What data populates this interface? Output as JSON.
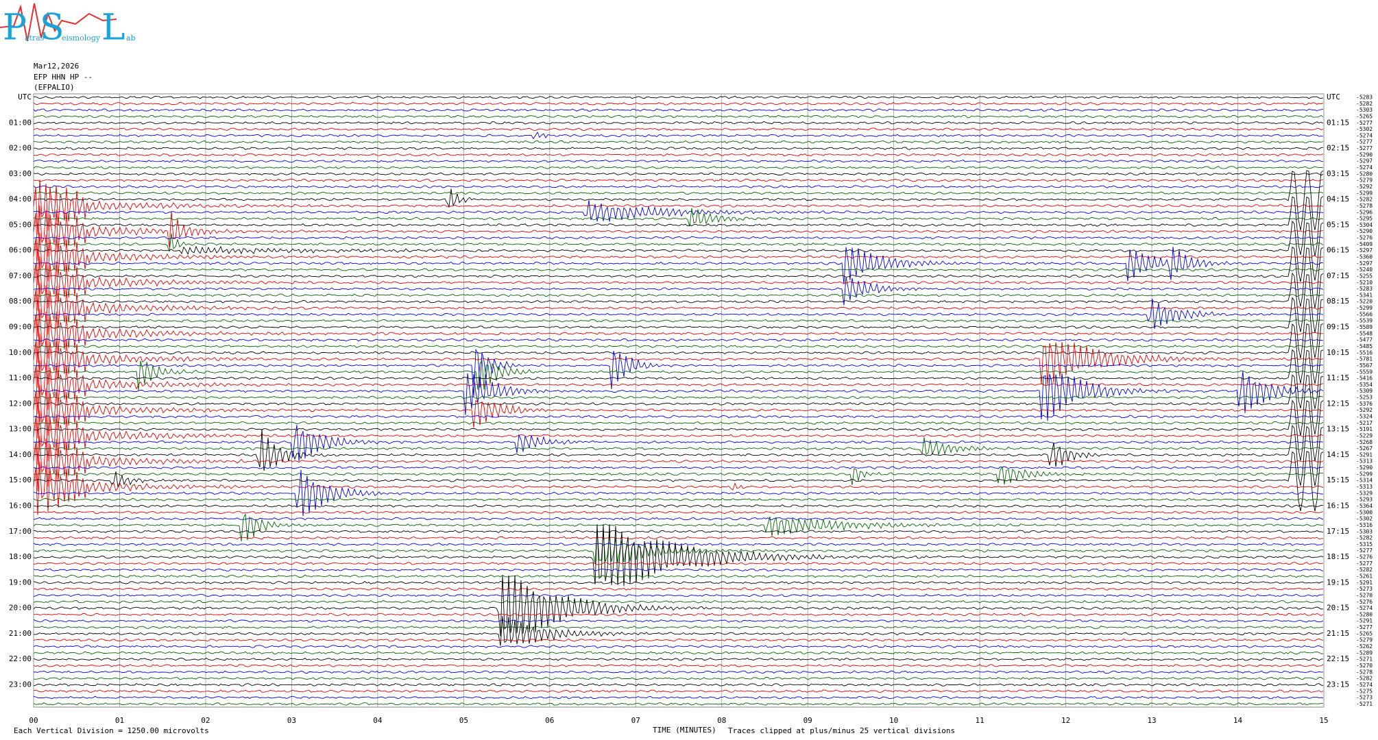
{
  "logo": {
    "p": "P",
    "p_rest": "atras",
    "s": "S",
    "s_rest": "eismology",
    "l": "L",
    "l_rest": "ab"
  },
  "header": {
    "date": "Mar12,2026",
    "channel": "EFP HHN HP --",
    "station": "(EFPALIO)"
  },
  "left_labels": [
    "UTC",
    "01:00",
    "02:00",
    "03:00",
    "04:00",
    "05:00",
    "06:00",
    "07:00",
    "08:00",
    "09:00",
    "10:00",
    "11:00",
    "12:00",
    "13:00",
    "14:00",
    "15:00",
    "16:00",
    "17:00",
    "18:00",
    "19:00",
    "20:00",
    "21:00",
    "22:00",
    "23:00"
  ],
  "right_labels": [
    "UTC",
    "01:15",
    "02:15",
    "03:15",
    "04:15",
    "05:15",
    "06:15",
    "07:15",
    "08:15",
    "09:15",
    "10:15",
    "11:15",
    "12:15",
    "13:15",
    "14:15",
    "15:15",
    "16:15",
    "17:15",
    "18:15",
    "19:15",
    "20:15",
    "21:15",
    "22:15",
    "23:15"
  ],
  "offsets": [
    -5283,
    -5282,
    -5303,
    -5265,
    -5277,
    -5302,
    -5274,
    -5277,
    -5277,
    -5290,
    -5297,
    -5274,
    -5280,
    -5279,
    -5292,
    -5299,
    -5282,
    -5278,
    -5296,
    -5295,
    -5304,
    -5290,
    -5276,
    -5409,
    -5297,
    -5360,
    -5297,
    -5240,
    -5255,
    -5210,
    -5283,
    -5341,
    -5220,
    -5299,
    -5566,
    -5539,
    -5589,
    -5548,
    -5477,
    -5485,
    -5516,
    -5781,
    -5567,
    -5559,
    -5416,
    -5354,
    -5309,
    -5253,
    -5376,
    -5292,
    -5324,
    -5217,
    -5191,
    -5229,
    -5268,
    -5267,
    -5291,
    -5313,
    -5290,
    -5299,
    -5314,
    -5313,
    -5329,
    -5293,
    -5364,
    -5300,
    -5302,
    -5316,
    -5303,
    -5282,
    -5315,
    -5277,
    -5276,
    -5277,
    -5282,
    -5261,
    -5291,
    -5273,
    -5270,
    -5276,
    -5274,
    -5280,
    -5291,
    -5277,
    -5265,
    -5279,
    -5262,
    -5289,
    -5271,
    -5270,
    -5278,
    -5282,
    -5274,
    -5275,
    -5273,
    -5271
  ],
  "x_labels": [
    "00",
    "01",
    "02",
    "03",
    "04",
    "05",
    "06",
    "07",
    "08",
    "09",
    "10",
    "11",
    "12",
    "13",
    "14",
    "15"
  ],
  "x_title": "TIME (MINUTES)",
  "scale_note": "Each Vertical Division = 1250.00 microvolts",
  "clip_note": "Traces clipped at plus/minus 25 vertical divisions"
}
